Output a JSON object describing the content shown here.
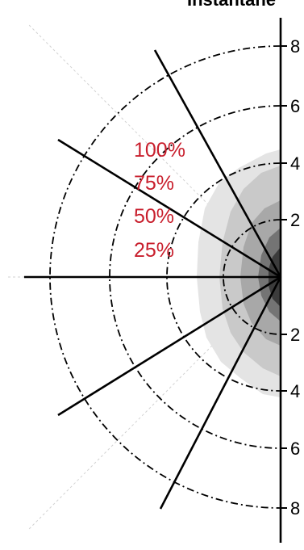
{
  "title": "Instantane",
  "percent_labels": [
    "100%",
    "75%",
    "50%",
    "25%"
  ],
  "axis_labels": [
    "8",
    "6",
    "4",
    "2",
    "2",
    "4",
    "6",
    "8"
  ],
  "colors": {
    "percent_label": "#c81e2c",
    "ink": "#000000",
    "background": "#ffffff",
    "shade_lightest": "#e4e4e4",
    "shade_light": "#c9c9c9",
    "shade_mid": "#a8a8a8",
    "shade_dark": "#747474",
    "shade_darkest": "#3c3c3c"
  }
}
